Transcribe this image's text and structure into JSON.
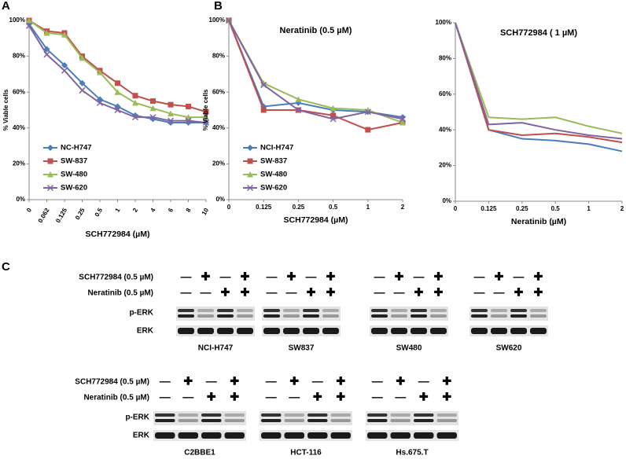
{
  "panels": [
    "A",
    "B",
    "C"
  ],
  "chart_data": [
    {
      "type": "line",
      "ylabel": "% Viable cells",
      "xlabel": "SCH772984 (µM)",
      "legend": "lower left",
      "categories": [
        "0",
        "0.062",
        "0.125",
        "0.25",
        "0.5",
        "1",
        "2",
        "4",
        "6",
        "8",
        "10"
      ],
      "ylim": [
        0,
        100
      ],
      "yticks": [
        {
          "value": 0,
          "label": "0%"
        },
        {
          "value": 20,
          "label": "20%"
        },
        {
          "value": 40,
          "label": "40%"
        },
        {
          "value": 60,
          "label": "60%"
        },
        {
          "value": 80,
          "label": "80%"
        },
        {
          "value": 100,
          "label": "100%"
        }
      ],
      "series": [
        {
          "name": "NC-H747",
          "color": "#4a7ebb",
          "marker": "diamond",
          "values": [
            98,
            84,
            75,
            65,
            56,
            52,
            47,
            45,
            43,
            43,
            43
          ]
        },
        {
          "name": "SW-837",
          "color": "#c0504d",
          "marker": "square",
          "values": [
            100,
            94,
            93,
            80,
            72,
            65,
            58,
            55,
            53,
            52,
            49
          ]
        },
        {
          "name": "SW-480",
          "color": "#9bbb59",
          "marker": "triangle",
          "values": [
            100,
            93,
            92,
            79,
            71,
            60,
            54,
            51,
            48,
            46,
            46
          ]
        },
        {
          "name": "SW-620",
          "color": "#8064a2",
          "marker": "x",
          "values": [
            97,
            81,
            72,
            61,
            54,
            50,
            46,
            46,
            44,
            44,
            43
          ]
        }
      ]
    },
    {
      "type": "line",
      "title": "Neratinib (0.5 µM)",
      "ylabel": "% Viable cells",
      "xlabel": "SCH772984 (µM)",
      "legend": "lower left",
      "categories": [
        "0",
        "0.125",
        "0.25",
        "0.5",
        "1",
        "2"
      ],
      "ylim": [
        0,
        100
      ],
      "yticks": [
        {
          "value": 0,
          "label": "0%"
        },
        {
          "value": 20,
          "label": "20%"
        },
        {
          "value": 40,
          "label": "40%"
        },
        {
          "value": 60,
          "label": "60%"
        },
        {
          "value": 80,
          "label": "80%"
        },
        {
          "value": 100,
          "label": "100%"
        }
      ],
      "series": [
        {
          "name": "NCI-H747",
          "color": "#4a7ebb",
          "marker": "diamond",
          "values": [
            100,
            52,
            54,
            50,
            49,
            46
          ]
        },
        {
          "name": "SW-837",
          "color": "#c0504d",
          "marker": "square",
          "values": [
            100,
            50,
            50,
            47,
            39,
            43
          ]
        },
        {
          "name": "SW-480",
          "color": "#9bbb59",
          "marker": "triangle",
          "values": [
            100,
            65,
            56,
            51,
            50,
            43
          ]
        },
        {
          "name": "SW-620",
          "color": "#8064a2",
          "marker": "x",
          "values": [
            100,
            64,
            50,
            45,
            49,
            45
          ]
        }
      ]
    },
    {
      "type": "line",
      "title": "SCH772984 ( 1 µM)",
      "xlabel": "Neratinib (µM)",
      "categories": [
        "0",
        "0.125",
        "0.25",
        "0.5",
        "1",
        "2"
      ],
      "ylim": [
        0,
        100
      ],
      "yticks": [
        {
          "value": 0,
          "label": "0%"
        },
        {
          "value": 20,
          "label": "20%"
        },
        {
          "value": 40,
          "label": "40%"
        },
        {
          "value": 60,
          "label": "60%"
        },
        {
          "value": 80,
          "label": "80%"
        },
        {
          "value": 100,
          "label": "100%"
        }
      ],
      "series": [
        {
          "color": "#4a7ebb",
          "marker": "none",
          "values": [
            100,
            40,
            35,
            34,
            32,
            28
          ]
        },
        {
          "color": "#c0504d",
          "marker": "none",
          "values": [
            100,
            40,
            37,
            38,
            36,
            33
          ]
        },
        {
          "color": "#9bbb59",
          "marker": "none",
          "values": [
            100,
            47,
            46,
            47,
            42,
            38
          ]
        },
        {
          "color": "#8064a2",
          "marker": "none",
          "values": [
            100,
            43,
            44,
            40,
            37,
            35
          ]
        }
      ]
    }
  ],
  "blots": {
    "treatments": [
      "SCH772984 (0.5 µM)",
      "Neratinib (0.5 µM)"
    ],
    "signs": [
      [
        "—",
        "✚",
        "—",
        "✚"
      ],
      [
        "—",
        "—",
        "✚",
        "✚"
      ]
    ],
    "bands": [
      "p-ERK",
      "ERK"
    ],
    "rows": [
      [
        "NCI-H747",
        "SW837",
        "SW480",
        "SW620"
      ],
      [
        "C2BBE1",
        "HCT-116",
        "Hs.675.T"
      ]
    ]
  }
}
